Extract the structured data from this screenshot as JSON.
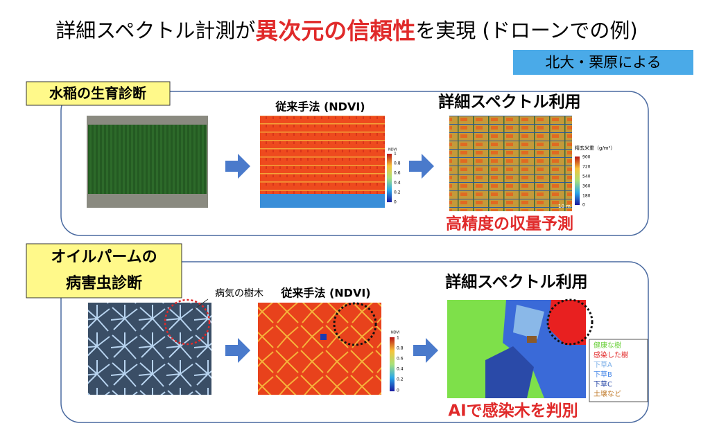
{
  "title": {
    "before": "詳細スペクトル計測が",
    "highlight": "異次元の信頼性",
    "after": "を実現 (ドローンでの例)"
  },
  "credit": "北大・栗原による",
  "rice": {
    "label": "水稲の生育診断",
    "ndvi_caption": "従来手法 (NDVI)",
    "spectral_caption": "詳細スペクトル利用",
    "result": "高精度の収量予測",
    "ndvi_scale": {
      "title": "NDVI",
      "ticks": [
        "1",
        "0.8",
        "0.6",
        "0.4",
        "0.2",
        "0"
      ]
    },
    "yield_scale": {
      "title": "精玄米重（g/m²）",
      "ticks": [
        "900",
        "720",
        "540",
        "360",
        "180",
        "0"
      ]
    },
    "scale_bar": "10 m"
  },
  "palm": {
    "label": [
      "オイルパームの",
      "病害虫診断"
    ],
    "annotation": "病気の樹木",
    "ndvi_caption": "従来手法 (NDVI)",
    "spectral_caption": "詳細スペクトル利用",
    "result": "AIで感染木を判別",
    "ndvi_scale": {
      "title": "NDVI",
      "ticks": [
        "1",
        "0.8",
        "0.6",
        "0.4",
        "0.2",
        "0"
      ]
    },
    "legend": [
      "健康な樹",
      "感染した樹",
      "下草A",
      "下草B",
      "下草C",
      "土壌など"
    ]
  }
}
